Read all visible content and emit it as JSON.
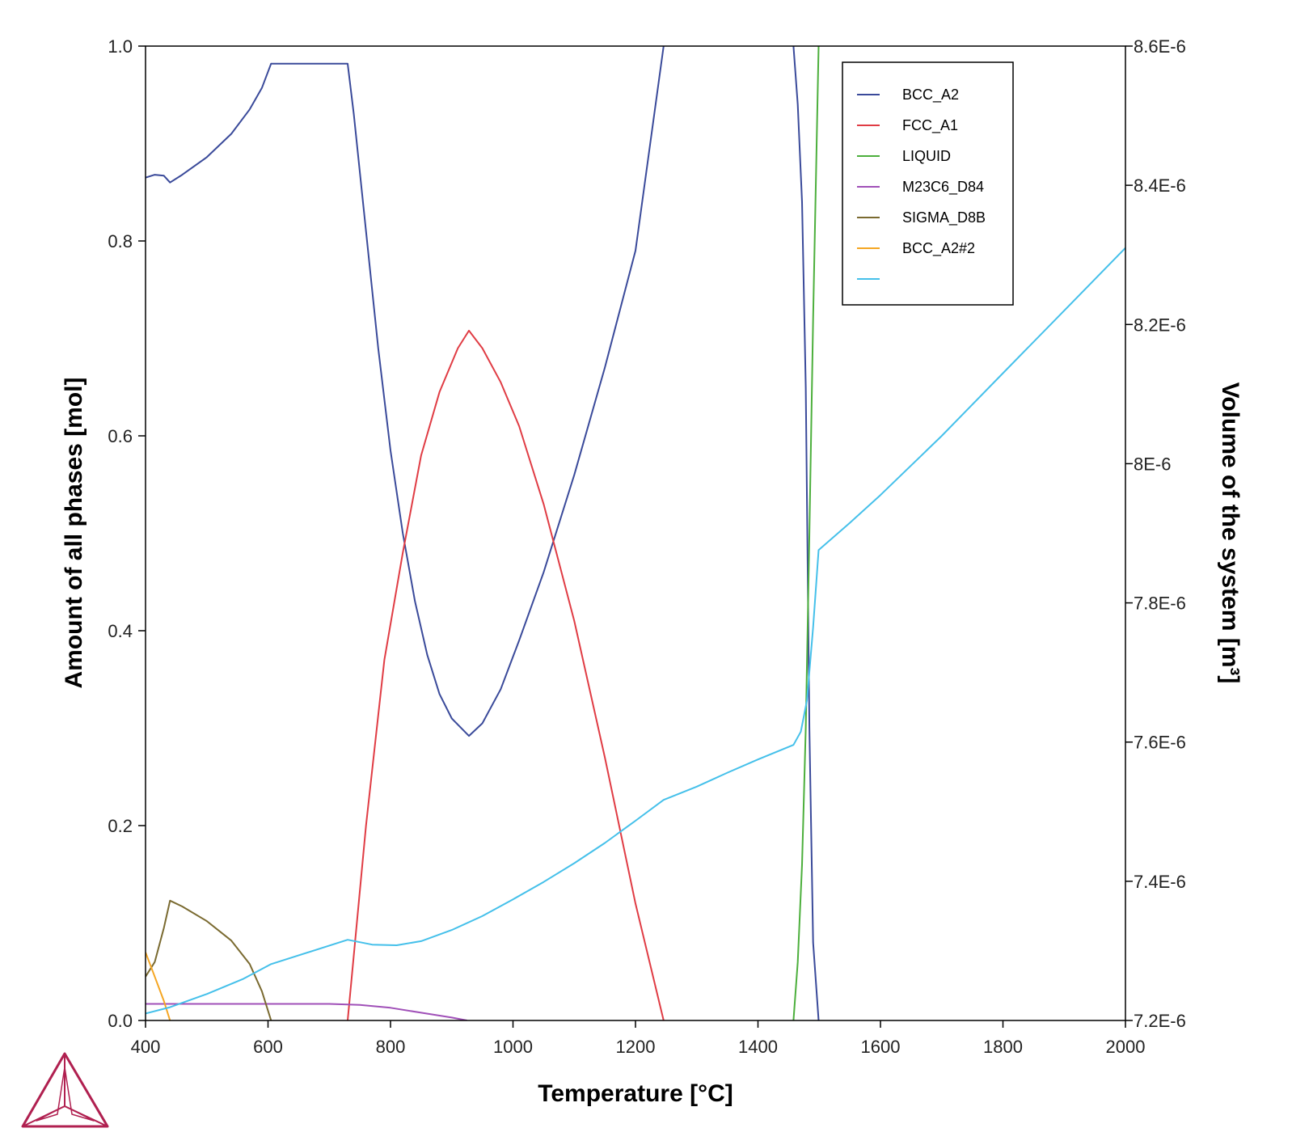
{
  "chart_data": {
    "type": "line",
    "xlabel": "Temperature [°C]",
    "ylabel": "Amount of all phases [mol]",
    "y2label": "Volume of the system [m³]",
    "xlim": [
      400,
      2000
    ],
    "ylim": [
      0,
      1
    ],
    "y2lim": [
      7.2e-06,
      8.6e-06
    ],
    "x_ticks": [
      "400",
      "600",
      "800",
      "1000",
      "1200",
      "1400",
      "1600",
      "1800",
      "2000"
    ],
    "y_ticks": [
      "0.0",
      "0.2",
      "0.4",
      "0.6",
      "0.8",
      "1.0"
    ],
    "y2_ticks": [
      "7.2E-6",
      "7.4E-6",
      "7.6E-6",
      "7.8E-6",
      "8E-6",
      "8.2E-6",
      "8.4E-6",
      "8.6E-6"
    ],
    "grid": false,
    "legend_position": "top-right",
    "series": [
      {
        "name": "BCC_A2",
        "color": "#3a4a9a",
        "axis": "left",
        "points": [
          [
            400,
            0.865
          ],
          [
            415,
            0.868
          ],
          [
            430,
            0.867
          ],
          [
            440,
            0.86
          ],
          [
            460,
            0.868
          ],
          [
            500,
            0.886
          ],
          [
            540,
            0.91
          ],
          [
            570,
            0.935
          ],
          [
            590,
            0.957
          ],
          [
            605,
            0.982
          ],
          [
            730,
            0.982
          ],
          [
            740,
            0.93
          ],
          [
            760,
            0.81
          ],
          [
            780,
            0.69
          ],
          [
            800,
            0.585
          ],
          [
            820,
            0.5
          ],
          [
            840,
            0.43
          ],
          [
            860,
            0.375
          ],
          [
            880,
            0.335
          ],
          [
            900,
            0.31
          ],
          [
            928,
            0.292
          ],
          [
            950,
            0.305
          ],
          [
            980,
            0.34
          ],
          [
            1010,
            0.39
          ],
          [
            1050,
            0.46
          ],
          [
            1100,
            0.56
          ],
          [
            1150,
            0.67
          ],
          [
            1200,
            0.79
          ],
          [
            1246,
            1.0
          ]
        ]
      },
      {
        "name": "BCC_A2",
        "color": "#3a4a9a",
        "axis": "left",
        "points": [
          [
            1458,
            1.0
          ],
          [
            1465,
            0.94
          ],
          [
            1472,
            0.84
          ],
          [
            1478,
            0.65
          ],
          [
            1484,
            0.3
          ],
          [
            1490,
            0.08
          ],
          [
            1499,
            0.0
          ]
        ]
      },
      {
        "name": "FCC_A1",
        "color": "#e03c44",
        "axis": "left",
        "points": [
          [
            730,
            0.0
          ],
          [
            760,
            0.2
          ],
          [
            790,
            0.37
          ],
          [
            820,
            0.48
          ],
          [
            850,
            0.58
          ],
          [
            880,
            0.645
          ],
          [
            910,
            0.69
          ],
          [
            928,
            0.708
          ],
          [
            950,
            0.69
          ],
          [
            980,
            0.655
          ],
          [
            1010,
            0.61
          ],
          [
            1050,
            0.53
          ],
          [
            1100,
            0.41
          ],
          [
            1150,
            0.27
          ],
          [
            1200,
            0.12
          ],
          [
            1246,
            0.0
          ]
        ]
      },
      {
        "name": "LIQUID",
        "color": "#4caf3c",
        "axis": "left",
        "points": [
          [
            1458,
            0.0
          ],
          [
            1465,
            0.06
          ],
          [
            1472,
            0.16
          ],
          [
            1478,
            0.3
          ],
          [
            1484,
            0.5
          ],
          [
            1490,
            0.72
          ],
          [
            1499,
            1.0
          ]
        ]
      },
      {
        "name": "M23C6_D84",
        "color": "#a050b8",
        "axis": "left",
        "points": [
          [
            400,
            0.017
          ],
          [
            500,
            0.017
          ],
          [
            600,
            0.017
          ],
          [
            700,
            0.017
          ],
          [
            750,
            0.016
          ],
          [
            800,
            0.013
          ],
          [
            850,
            0.008
          ],
          [
            900,
            0.003
          ],
          [
            925,
            0.0
          ]
        ]
      },
      {
        "name": "SIGMA_D8B",
        "color": "#7a6a30",
        "axis": "left",
        "points": [
          [
            400,
            0.045
          ],
          [
            415,
            0.06
          ],
          [
            430,
            0.095
          ],
          [
            440,
            0.123
          ],
          [
            460,
            0.117
          ],
          [
            500,
            0.102
          ],
          [
            540,
            0.082
          ],
          [
            570,
            0.058
          ],
          [
            590,
            0.03
          ],
          [
            605,
            0.0
          ]
        ]
      },
      {
        "name": "BCC_A2#2",
        "color": "#f5a623",
        "axis": "left",
        "points": [
          [
            400,
            0.07
          ],
          [
            415,
            0.045
          ],
          [
            430,
            0.02
          ],
          [
            440,
            0.0
          ]
        ]
      },
      {
        "name": "",
        "color": "#45c0ea",
        "axis": "right",
        "points": [
          [
            400,
            7.21e-06
          ],
          [
            440,
            7.219e-06
          ],
          [
            500,
            7.238e-06
          ],
          [
            560,
            7.26e-06
          ],
          [
            605,
            7.281e-06
          ],
          [
            730,
            7.316e-06
          ],
          [
            770,
            7.309e-06
          ],
          [
            810,
            7.308e-06
          ],
          [
            850,
            7.314e-06
          ],
          [
            900,
            7.33e-06
          ],
          [
            950,
            7.35e-06
          ],
          [
            1000,
            7.374e-06
          ],
          [
            1050,
            7.399e-06
          ],
          [
            1100,
            7.426e-06
          ],
          [
            1150,
            7.455e-06
          ],
          [
            1200,
            7.487e-06
          ],
          [
            1246,
            7.517e-06
          ],
          [
            1300,
            7.536e-06
          ],
          [
            1350,
            7.556e-06
          ],
          [
            1400,
            7.575e-06
          ],
          [
            1458,
            7.596e-06
          ],
          [
            1470,
            7.615e-06
          ],
          [
            1480,
            7.66e-06
          ],
          [
            1490,
            7.765e-06
          ],
          [
            1499,
            7.876e-06
          ],
          [
            1550,
            7.915e-06
          ],
          [
            1600,
            7.955e-06
          ],
          [
            1700,
            8.04e-06
          ],
          [
            1800,
            8.13e-06
          ],
          [
            1900,
            8.22e-06
          ],
          [
            2000,
            8.31e-06
          ]
        ]
      }
    ]
  },
  "legend": {
    "entries": [
      {
        "label": "BCC_A2",
        "color": "#3a4a9a"
      },
      {
        "label": "FCC_A1",
        "color": "#e03c44"
      },
      {
        "label": "LIQUID",
        "color": "#4caf3c"
      },
      {
        "label": "M23C6_D84",
        "color": "#a050b8"
      },
      {
        "label": "SIGMA_D8B",
        "color": "#7a6a30"
      },
      {
        "label": "BCC_A2#2",
        "color": "#f5a623"
      },
      {
        "label": "",
        "color": "#45c0ea"
      }
    ]
  },
  "logo": {
    "icon": "thermo-calc-logo-icon",
    "color": "#b02050"
  }
}
